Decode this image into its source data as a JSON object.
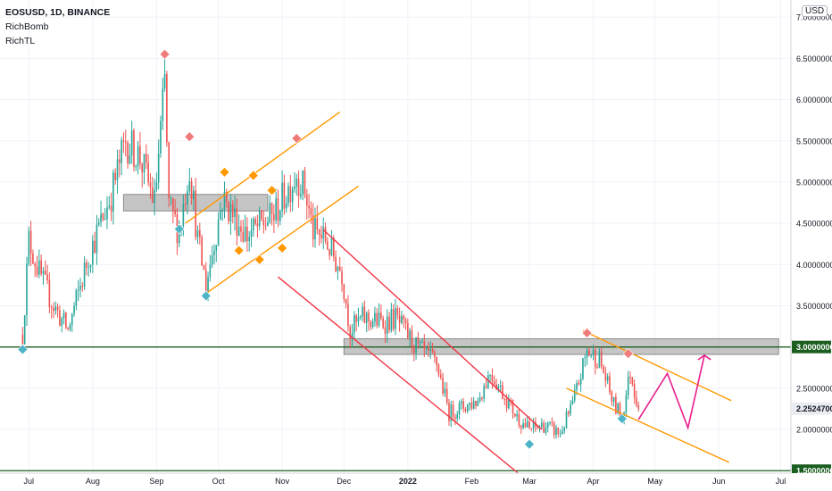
{
  "legend": {
    "symbol_line": "EOSUSD, 1D, BINANCE",
    "indicator_1": "RichBomb",
    "indicator_2": "RichTL"
  },
  "currency_badge": "USD",
  "chart_data": {
    "type": "candlestick",
    "symbol": "EOSUSD",
    "interval": "1D",
    "exchange": "BINANCE",
    "x_ticks": [
      "Jul",
      "Aug",
      "Sep",
      "Oct",
      "Nov",
      "Dec",
      "2022",
      "Feb",
      "Mar",
      "Apr",
      "May",
      "Jun",
      "Jul"
    ],
    "y_ticks": [
      "1.5000000",
      "2.0000000",
      "2.5000000",
      "3.0000000",
      "3.5000000",
      "4.0000000",
      "4.5000000",
      "5.0000000",
      "5.5000000",
      "6.0000000",
      "6.5000000",
      "7.0000000"
    ],
    "y_range": [
      1.47,
      7.1
    ],
    "price_labels": [
      {
        "text": "3.0000000",
        "value": 3.0,
        "kind": "level"
      },
      {
        "text": "2.2524700",
        "value": 2.25247,
        "kind": "last"
      },
      {
        "text": "1.5000000",
        "value": 1.5,
        "kind": "level"
      }
    ],
    "horizontal_lines": [
      {
        "value": 3.0,
        "color": "#1b5e20"
      },
      {
        "value": 1.5,
        "color": "#1b5e20"
      }
    ],
    "zones": [
      {
        "from_date": "2021-08-16",
        "to_date": "2021-10-25",
        "low": 4.65,
        "high": 4.85
      },
      {
        "from_date": "2021-12-01",
        "to_date": "2022-06-30",
        "low": 2.91,
        "high": 3.1
      }
    ],
    "trend_lines": [
      {
        "color": "#ff9800",
        "p1": [
          "2021-09-25",
          3.65
        ],
        "p2": [
          "2021-12-08",
          4.95
        ]
      },
      {
        "color": "#ff9800",
        "p1": [
          "2021-09-15",
          4.5
        ],
        "p2": [
          "2021-11-29",
          5.85
        ]
      },
      {
        "color": "#f23645",
        "p1": [
          "2021-11-21",
          4.42
        ],
        "p2": [
          "2022-03-07",
          2.0
        ]
      },
      {
        "color": "#f23645",
        "p1": [
          "2021-10-30",
          3.85
        ],
        "p2": [
          "2022-02-26",
          1.42
        ]
      },
      {
        "color": "#ff9800",
        "p1": [
          "2022-03-27",
          3.2
        ],
        "p2": [
          "2022-06-07",
          2.35
        ]
      },
      {
        "color": "#ff9800",
        "p1": [
          "2022-03-19",
          2.5
        ],
        "p2": [
          "2022-06-06",
          1.6
        ]
      }
    ],
    "projection": {
      "color": "#e91e8c",
      "points": [
        [
          "2022-04-23",
          2.12
        ],
        [
          "2022-05-07",
          2.68
        ],
        [
          "2022-05-17",
          2.02
        ],
        [
          "2022-05-25",
          2.9
        ]
      ]
    },
    "markers": [
      {
        "date": "2021-06-28",
        "value": 2.97,
        "color": "#4fb3c7"
      },
      {
        "date": "2021-09-05",
        "value": 6.55,
        "color": "#f07b7b"
      },
      {
        "date": "2021-09-12",
        "value": 4.43,
        "color": "#4fb3c7"
      },
      {
        "date": "2021-09-17",
        "value": 5.55,
        "color": "#f07b7b"
      },
      {
        "date": "2021-09-25",
        "value": 3.62,
        "color": "#4fb3c7"
      },
      {
        "date": "2021-10-04",
        "value": 5.12,
        "color": "#ff9800"
      },
      {
        "date": "2021-10-11",
        "value": 4.17,
        "color": "#ff9800"
      },
      {
        "date": "2021-10-18",
        "value": 5.08,
        "color": "#ff9800"
      },
      {
        "date": "2021-10-21",
        "value": 4.06,
        "color": "#ff9800"
      },
      {
        "date": "2021-10-27",
        "value": 4.9,
        "color": "#ff9800"
      },
      {
        "date": "2021-11-01",
        "value": 4.2,
        "color": "#ff9800"
      },
      {
        "date": "2021-11-08",
        "value": 5.53,
        "color": "#f07b7b"
      },
      {
        "date": "2022-03-01",
        "value": 1.82,
        "color": "#4fb3c7"
      },
      {
        "date": "2022-03-29",
        "value": 3.17,
        "color": "#f07b7b"
      },
      {
        "date": "2022-04-15",
        "value": 2.13,
        "color": "#4fb3c7"
      },
      {
        "date": "2022-04-18",
        "value": 2.92,
        "color": "#f07b7b"
      }
    ],
    "candle_anchors": [
      [
        "2021-06-28",
        3.15
      ],
      [
        "2021-07-01",
        4.3
      ],
      [
        "2021-07-06",
        3.9
      ],
      [
        "2021-07-13",
        3.5
      ],
      [
        "2021-07-20",
        3.2
      ],
      [
        "2021-07-30",
        4.1
      ],
      [
        "2021-08-10",
        4.85
      ],
      [
        "2021-08-17",
        5.5
      ],
      [
        "2021-08-24",
        5.3
      ],
      [
        "2021-08-31",
        4.75
      ],
      [
        "2021-09-05",
        6.2
      ],
      [
        "2021-09-07",
        4.7
      ],
      [
        "2021-09-12",
        4.4
      ],
      [
        "2021-09-17",
        5.2
      ],
      [
        "2021-09-21",
        4.3
      ],
      [
        "2021-09-25",
        3.75
      ],
      [
        "2021-10-03",
        4.8
      ],
      [
        "2021-10-15",
        4.35
      ],
      [
        "2021-10-28",
        4.6
      ],
      [
        "2021-11-08",
        5.1
      ],
      [
        "2021-11-12",
        4.9
      ],
      [
        "2021-11-16",
        4.4
      ],
      [
        "2021-11-22",
        4.3
      ],
      [
        "2021-11-30",
        3.9
      ],
      [
        "2021-12-04",
        3.2
      ],
      [
        "2021-12-10",
        3.35
      ],
      [
        "2021-12-20",
        3.3
      ],
      [
        "2021-12-26",
        3.35
      ],
      [
        "2022-01-05",
        3.0
      ],
      [
        "2022-01-15",
        2.8
      ],
      [
        "2022-01-21",
        2.2
      ],
      [
        "2022-02-04",
        2.35
      ],
      [
        "2022-02-10",
        2.7
      ],
      [
        "2022-02-23",
        2.15
      ],
      [
        "2022-03-01",
        2.0
      ],
      [
        "2022-03-08",
        2.05
      ],
      [
        "2022-03-16",
        1.95
      ],
      [
        "2022-03-22",
        2.3
      ],
      [
        "2022-03-29",
        2.95
      ],
      [
        "2022-04-04",
        2.85
      ],
      [
        "2022-04-11",
        2.3
      ],
      [
        "2022-04-15",
        2.15
      ],
      [
        "2022-04-19",
        2.7
      ],
      [
        "2022-04-23",
        2.25
      ]
    ]
  }
}
